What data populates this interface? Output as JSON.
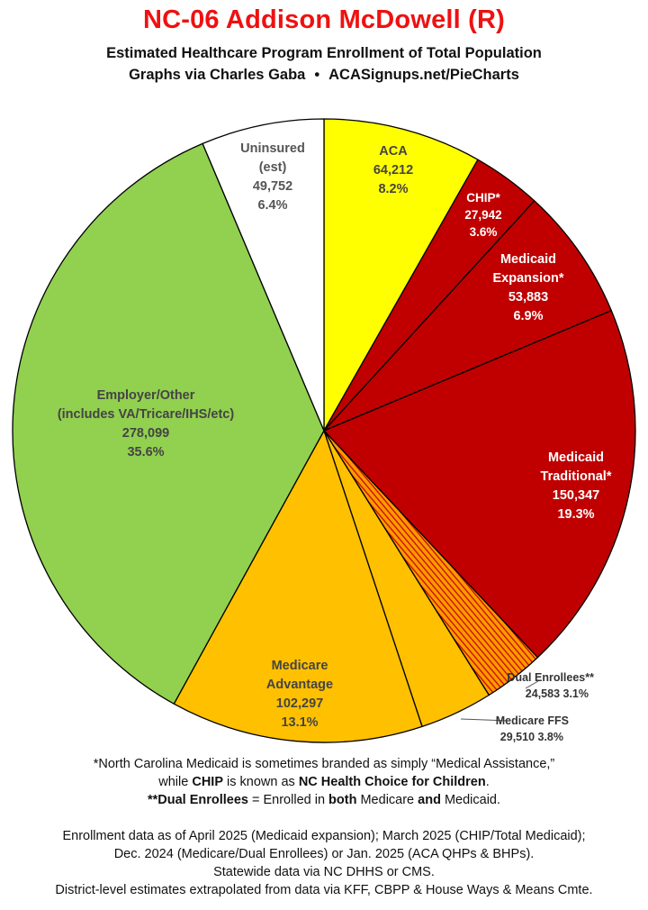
{
  "header": {
    "title": "NC-06 Addison McDowell (R)",
    "subtitle": "Estimated Healthcare Program Enrollment of Total Population",
    "credit": "Graphs via Charles Gaba",
    "separator": "•",
    "site": "ACASignups.net/PieCharts"
  },
  "chart_data": {
    "type": "pie",
    "slices": [
      {
        "name": "ACA",
        "value": 64212,
        "value_label": "64,212",
        "percent": "8.2%",
        "color": "#ffff00",
        "label_color": "#444444",
        "label_lines": [
          "ACA"
        ]
      },
      {
        "name": "CHIP*",
        "value": 27942,
        "value_label": "27,942",
        "percent": "3.6%",
        "color": "#c00000",
        "label_color": "#ffffff",
        "label_lines": [
          "CHIP*"
        ]
      },
      {
        "name": "Medicaid Expansion*",
        "value": 53883,
        "value_label": "53,883",
        "percent": "6.9%",
        "color": "#c00000",
        "label_color": "#ffffff",
        "label_lines": [
          "Medicaid",
          "Expansion*"
        ]
      },
      {
        "name": "Medicaid Traditional*",
        "value": 150347,
        "value_label": "150,347",
        "percent": "19.3%",
        "color": "#c00000",
        "label_color": "#ffffff",
        "label_lines": [
          "Medicaid",
          "Traditional*"
        ]
      },
      {
        "name": "Dual Enrollees**",
        "value": 24583,
        "value_label": "24,583",
        "percent": "3.1%",
        "color": "#ff9900",
        "hatch": true,
        "label_color": "#333333",
        "label_lines": [
          "Dual Enrollees**"
        ]
      },
      {
        "name": "Medicare FFS",
        "value": 29510,
        "value_label": "29,510",
        "percent": "3.8%",
        "color": "#ffc000",
        "label_color": "#333333",
        "label_lines": [
          "Medicare FFS"
        ]
      },
      {
        "name": "Medicare Advantage",
        "value": 102297,
        "value_label": "102,297",
        "percent": "13.1%",
        "color": "#ffc000",
        "label_color": "#444444",
        "label_lines": [
          "Medicare",
          "Advantage"
        ]
      },
      {
        "name": "Employer/Other (includes VA/Tricare/IHS/etc)",
        "value": 278099,
        "value_label": "278,099",
        "percent": "35.6%",
        "color": "#92d050",
        "label_color": "#444444",
        "label_lines": [
          "Employer/Other",
          "(includes VA/Tricare/IHS/etc)"
        ]
      },
      {
        "name": "Uninsured (est)",
        "value": 49752,
        "value_label": "49,752",
        "percent": "6.4%",
        "color": "#ffffff",
        "label_color": "#555555",
        "label_lines": [
          "Uninsured",
          "(est)"
        ]
      }
    ]
  },
  "footnotes": {
    "line1": "*North Carolina Medicaid is sometimes branded as simply “Medical Assistance,”",
    "line2_pre": "while ",
    "line2_chip": "CHIP",
    "line2_mid": " is known as ",
    "line2_nc": "NC Health Choice for Children",
    "line2_end": ".",
    "line3_dual": "**Dual Enrollees",
    "line3_mid": " = Enrolled in ",
    "line3_both": "both",
    "line3_mid2": " Medicare ",
    "line3_and": "and",
    "line3_end": " Medicaid."
  },
  "sources": {
    "line1": "Enrollment data as of April 2025 (Medicaid expansion); March 2025 (CHIP/Total Medicaid);",
    "line2": "Dec. 2024 (Medicare/Dual Enrollees) or Jan. 2025 (ACA QHPs & BHPs).",
    "line3": "Statewide data via NC DHHS or CMS.",
    "line4": "District-level estimates extrapolated from data via KFF, CBPP & House Ways & Means Cmte."
  }
}
